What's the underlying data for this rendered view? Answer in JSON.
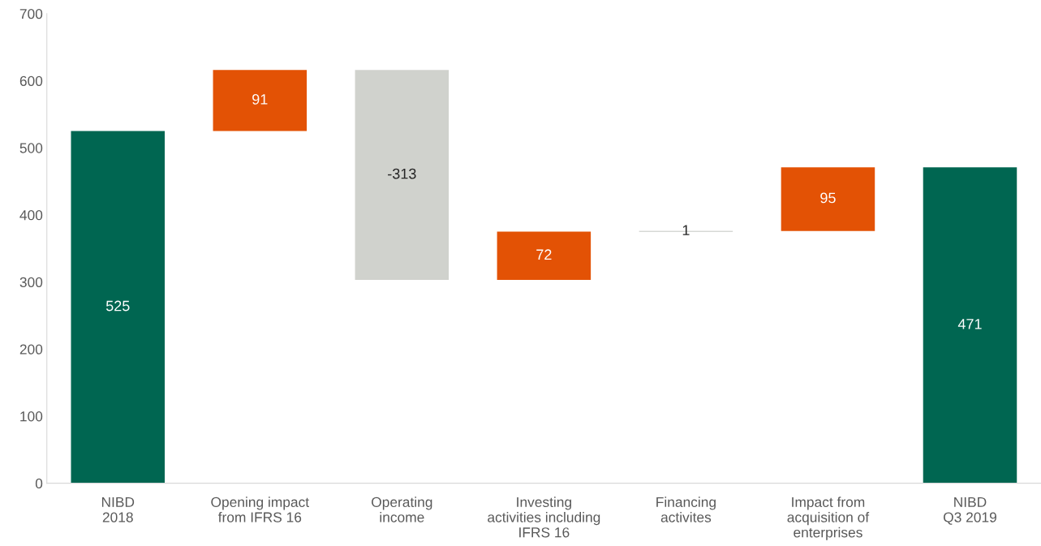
{
  "chart_data": {
    "type": "bar",
    "categories": [
      "NIBD\n2018",
      "Opening impact\nfrom IFRS 16",
      "Operating\nincome",
      "Investing\nactivities including\nIFRS 16",
      "Financing\nactivites",
      "Impact from\nacquisition of\nenterprises",
      "NIBD\nQ3 2019"
    ],
    "values": [
      525,
      91,
      -313,
      72,
      1,
      95,
      471
    ],
    "base": [
      0,
      525,
      616,
      303,
      375,
      376,
      0
    ],
    "colors": [
      "#006651",
      "#e35205",
      "#d0d2cd",
      "#e35205",
      "#b0b2ad",
      "#e35205",
      "#006651"
    ],
    "data_labels": true,
    "ylim": [
      0,
      700
    ],
    "yticks": [
      0,
      100,
      200,
      300,
      400,
      500,
      600,
      700
    ],
    "grid": false,
    "legend": false
  }
}
